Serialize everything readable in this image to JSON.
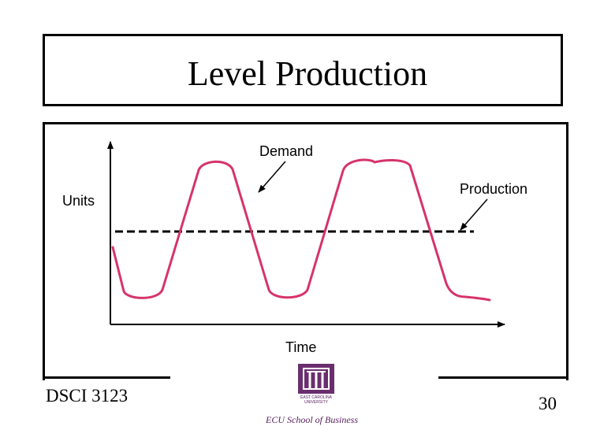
{
  "slide": {
    "title": "Level Production",
    "footer_left": "DSCI 3123",
    "page_number": "30",
    "logo_text": "EAST CAROLINA UNIVERSITY",
    "school_text": "ECU School of Business"
  },
  "diagram": {
    "y_axis_label": "Units",
    "x_axis_label": "Time",
    "demand_label": "Demand",
    "production_label": "Production",
    "demand_color": "#d6336c",
    "production_color": "#000000"
  }
}
